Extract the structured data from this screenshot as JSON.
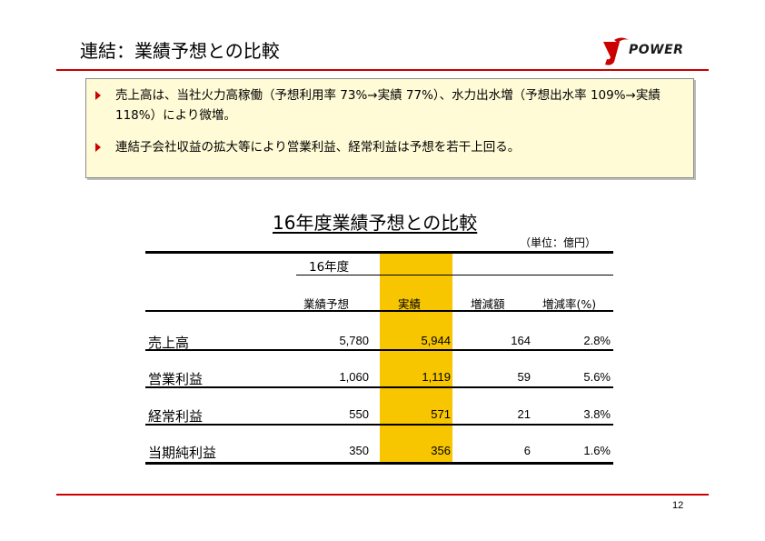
{
  "header": {
    "title": "連結：業績予想との比較",
    "logo_text": "POWER"
  },
  "summary": {
    "bullets": [
      "売上高は、当社火力高稼働（予想利用率 73%→実績 77%）、水力出水増（予想出水率 109%→実績 118%）により微増。",
      "連結子会社収益の拡大等により営業利益、経常利益は予想を若干上回る。"
    ]
  },
  "table": {
    "title": "16年度業績予想との比較",
    "unit": "（単位：億円）",
    "year": "16年度",
    "columns": [
      "業績予想",
      "実績",
      "増減額",
      "増減率(%)"
    ],
    "rows": [
      {
        "label": "売上高",
        "forecast": "5,780",
        "actual": "5,944",
        "diff": "164",
        "rate": "2.8%"
      },
      {
        "label": "営業利益",
        "forecast": "1,060",
        "actual": "1,119",
        "diff": "59",
        "rate": "5.6%"
      },
      {
        "label": "経常利益",
        "forecast": "550",
        "actual": "571",
        "diff": "21",
        "rate": "3.8%"
      },
      {
        "label": "当期純利益",
        "forecast": "350",
        "actual": "356",
        "diff": "6",
        "rate": "1.6%"
      }
    ]
  },
  "footer": {
    "page": "12"
  },
  "colors": {
    "accent": "#cc0000",
    "highlight": "#f7c600",
    "box_bg": "#fffbd6"
  }
}
